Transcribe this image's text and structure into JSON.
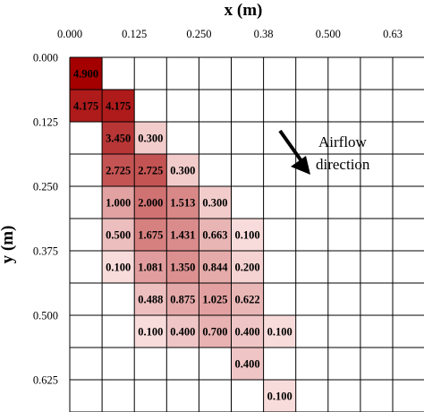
{
  "chart_data": {
    "type": "heatmap",
    "xlabel": "x (m)",
    "ylabel": "y (m)",
    "x_tick_labels": [
      "0.000",
      "0.125",
      "0.250",
      "0.38",
      "0.500",
      "0.63"
    ],
    "y_tick_labels": [
      "0.000",
      "0.125",
      "0.250",
      "0.375",
      "0.500",
      "0.625"
    ],
    "n_cols": 11,
    "n_rows": 11,
    "colors": {
      "low": "#fde8e8",
      "high": "#a50000",
      "grid": "#000000"
    },
    "value_max": 4.9,
    "cells": [
      {
        "row": 0,
        "col": 0,
        "value": 4.9,
        "label": "4.900"
      },
      {
        "row": 1,
        "col": 0,
        "value": 4.175,
        "label": "4.175"
      },
      {
        "row": 1,
        "col": 1,
        "value": 4.175,
        "label": "4.175"
      },
      {
        "row": 2,
        "col": 1,
        "value": 3.45,
        "label": "3.450"
      },
      {
        "row": 2,
        "col": 2,
        "value": 0.3,
        "label": "0.300"
      },
      {
        "row": 3,
        "col": 1,
        "value": 2.725,
        "label": "2.725"
      },
      {
        "row": 3,
        "col": 2,
        "value": 2.725,
        "label": "2.725"
      },
      {
        "row": 3,
        "col": 3,
        "value": 0.3,
        "label": "0.300"
      },
      {
        "row": 4,
        "col": 1,
        "value": 1.0,
        "label": "1.000"
      },
      {
        "row": 4,
        "col": 2,
        "value": 2.0,
        "label": "2.000"
      },
      {
        "row": 4,
        "col": 3,
        "value": 1.513,
        "label": "1.513"
      },
      {
        "row": 4,
        "col": 4,
        "value": 0.3,
        "label": "0.300"
      },
      {
        "row": 5,
        "col": 1,
        "value": 0.5,
        "label": "0.500"
      },
      {
        "row": 5,
        "col": 2,
        "value": 1.675,
        "label": "1.675"
      },
      {
        "row": 5,
        "col": 3,
        "value": 1.431,
        "label": "1.431"
      },
      {
        "row": 5,
        "col": 4,
        "value": 0.663,
        "label": "0.663"
      },
      {
        "row": 5,
        "col": 5,
        "value": 0.1,
        "label": "0.100"
      },
      {
        "row": 6,
        "col": 1,
        "value": 0.1,
        "label": "0.100"
      },
      {
        "row": 6,
        "col": 2,
        "value": 1.081,
        "label": "1.081"
      },
      {
        "row": 6,
        "col": 3,
        "value": 1.35,
        "label": "1.350"
      },
      {
        "row": 6,
        "col": 4,
        "value": 0.844,
        "label": "0.844"
      },
      {
        "row": 6,
        "col": 5,
        "value": 0.2,
        "label": "0.200"
      },
      {
        "row": 7,
        "col": 2,
        "value": 0.488,
        "label": "0.488"
      },
      {
        "row": 7,
        "col": 3,
        "value": 0.875,
        "label": "0.875"
      },
      {
        "row": 7,
        "col": 4,
        "value": 1.025,
        "label": "1.025"
      },
      {
        "row": 7,
        "col": 5,
        "value": 0.622,
        "label": "0.622"
      },
      {
        "row": 8,
        "col": 2,
        "value": 0.1,
        "label": "0.100"
      },
      {
        "row": 8,
        "col": 3,
        "value": 0.4,
        "label": "0.400"
      },
      {
        "row": 8,
        "col": 4,
        "value": 0.7,
        "label": "0.700"
      },
      {
        "row": 8,
        "col": 5,
        "value": 0.4,
        "label": "0.400"
      },
      {
        "row": 8,
        "col": 6,
        "value": 0.1,
        "label": "0.100"
      },
      {
        "row": 9,
        "col": 5,
        "value": 0.4,
        "label": "0.400"
      },
      {
        "row": 10,
        "col": 6,
        "value": 0.1,
        "label": "0.100"
      }
    ],
    "annotation": {
      "line1": "Airflow",
      "line2": "direction",
      "arrow": "arrow-down-right"
    }
  }
}
